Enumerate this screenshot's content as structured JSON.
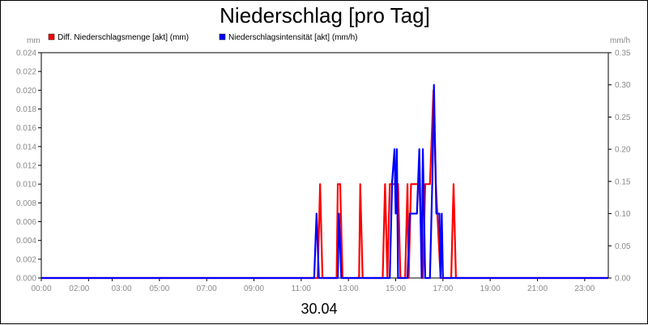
{
  "chart_data": {
    "type": "line",
    "title": "Niederschlag [pro Tag]",
    "xlabel": "30.04",
    "left_axis_unit": "mm",
    "right_axis_unit": "mm/h",
    "x_ticks": [
      "00:00",
      "02:00",
      "03:00",
      "05:00",
      "07:00",
      "09:00",
      "11:00",
      "13:00",
      "15:00",
      "17:00",
      "19:00",
      "21:00",
      "23:00"
    ],
    "x_range_hours": [
      0,
      24
    ],
    "ylim_left": [
      0,
      0.024
    ],
    "yticks_left": [
      "0.000",
      "0.002",
      "0.004",
      "0.006",
      "0.008",
      "0.010",
      "0.012",
      "0.014",
      "0.016",
      "0.018",
      "0.020",
      "0.022",
      "0.024"
    ],
    "ylim_right": [
      0,
      0.35
    ],
    "yticks_right": [
      "0.00",
      "0.05",
      "0.10",
      "0.15",
      "0.20",
      "0.25",
      "0.30",
      "0.35"
    ],
    "grid": false,
    "legend_position": "top",
    "series": [
      {
        "name": "Diff. Niederschlagsmenge [akt] (mm)",
        "color": "#ff0000",
        "axis": "left",
        "points": [
          [
            0,
            0
          ],
          [
            11.7,
            0
          ],
          [
            11.8,
            0.01
          ],
          [
            11.9,
            0
          ],
          [
            12.5,
            0
          ],
          [
            12.55,
            0.01
          ],
          [
            12.65,
            0.01
          ],
          [
            12.75,
            0
          ],
          [
            13.45,
            0
          ],
          [
            13.5,
            0.01
          ],
          [
            13.6,
            0
          ],
          [
            14.45,
            0
          ],
          [
            14.55,
            0.01
          ],
          [
            14.65,
            0
          ],
          [
            14.75,
            0.01
          ],
          [
            15.1,
            0.01
          ],
          [
            15.2,
            0
          ],
          [
            15.4,
            0
          ],
          [
            15.5,
            0.01
          ],
          [
            15.55,
            0
          ],
          [
            15.65,
            0.01
          ],
          [
            16.0,
            0.01
          ],
          [
            16.15,
            0
          ],
          [
            16.25,
            0.01
          ],
          [
            16.45,
            0.01
          ],
          [
            16.6,
            0.02
          ],
          [
            16.7,
            0.01
          ],
          [
            16.9,
            0
          ],
          [
            17.35,
            0
          ],
          [
            17.45,
            0.01
          ],
          [
            17.55,
            0
          ],
          [
            24,
            0
          ]
        ]
      },
      {
        "name": "Niederschlagsintensität [akt] (mm/h)",
        "color": "#0000ff",
        "axis": "right",
        "points": [
          [
            0,
            0
          ],
          [
            11.55,
            0
          ],
          [
            11.65,
            0.1
          ],
          [
            11.75,
            0
          ],
          [
            12.55,
            0
          ],
          [
            12.6,
            0.1
          ],
          [
            12.7,
            0
          ],
          [
            14.75,
            0
          ],
          [
            14.85,
            0.15
          ],
          [
            14.95,
            0.2
          ],
          [
            15.0,
            0.1
          ],
          [
            15.05,
            0.2
          ],
          [
            15.1,
            0
          ],
          [
            15.5,
            0
          ],
          [
            15.6,
            0.1
          ],
          [
            15.9,
            0.1
          ],
          [
            16.0,
            0.2
          ],
          [
            16.1,
            0
          ],
          [
            16.15,
            0.2
          ],
          [
            16.25,
            0
          ],
          [
            16.45,
            0
          ],
          [
            16.55,
            0.15
          ],
          [
            16.62,
            0.3
          ],
          [
            16.72,
            0.1
          ],
          [
            16.85,
            0.1
          ],
          [
            16.9,
            0
          ],
          [
            16.95,
            0.1
          ],
          [
            17.0,
            0
          ],
          [
            24,
            0
          ]
        ]
      }
    ]
  }
}
